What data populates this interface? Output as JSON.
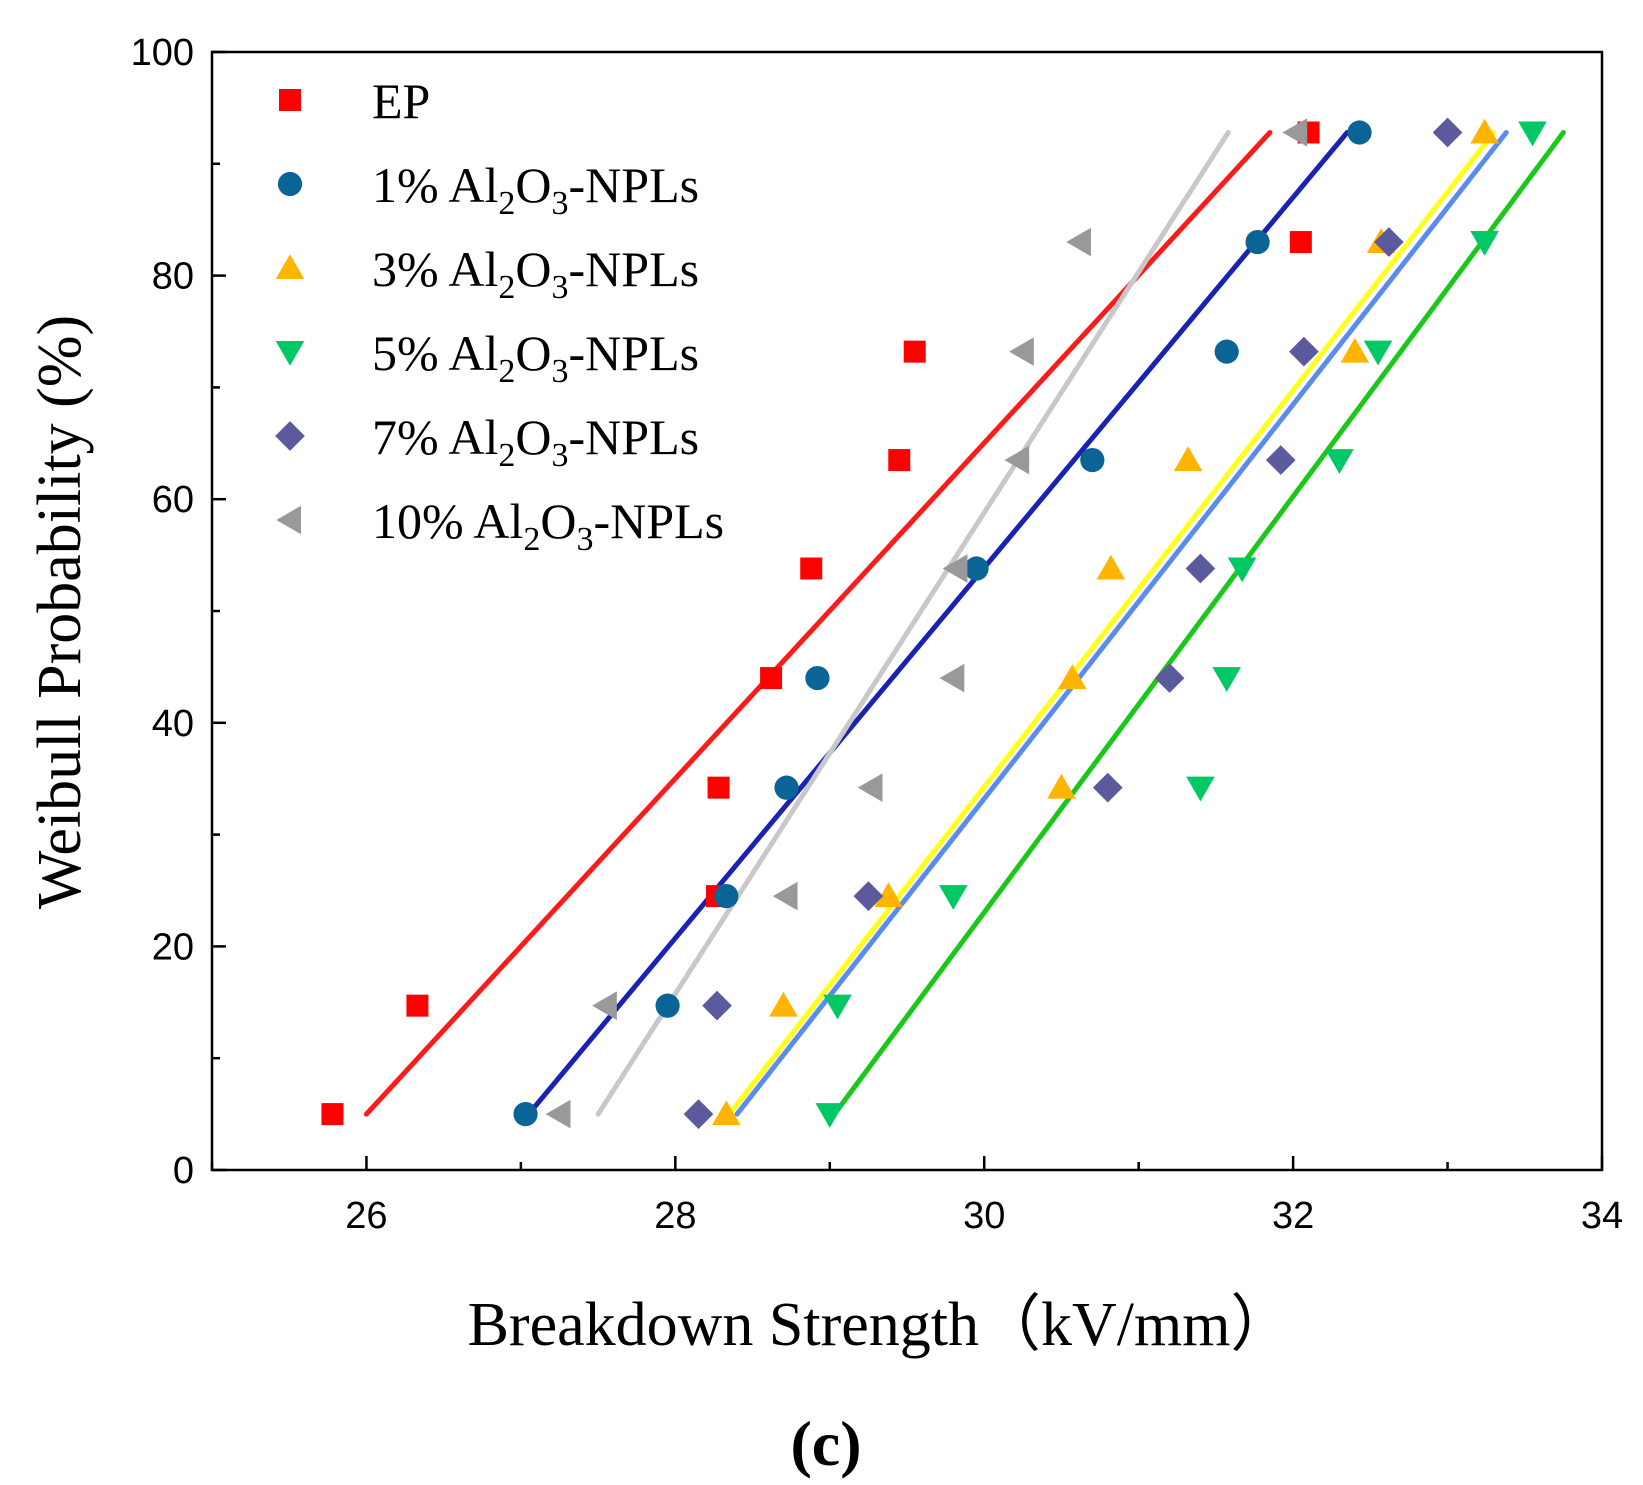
{
  "chart_data": {
    "type": "scatter",
    "title": "",
    "xlabel": "Breakdown Strength（kV/mm）",
    "ylabel": "Weibull Probability (%)",
    "xlim": [
      25,
      34
    ],
    "ylim": [
      0,
      100
    ],
    "xticks": [
      26,
      28,
      30,
      32,
      34
    ],
    "yticks": [
      0,
      20,
      40,
      60,
      80,
      100
    ],
    "xtick_labels": [
      "26",
      "28",
      "30",
      "32",
      "34"
    ],
    "ytick_labels": [
      "0",
      "20",
      "40",
      "60",
      "80",
      "100"
    ],
    "caption": "(c)",
    "legend_position": "top-left",
    "series": [
      {
        "name": "EP",
        "prefix": "EP",
        "suffix": "",
        "marker": "square",
        "color": "#ff0000",
        "line_color": "#ff1a1a",
        "x": [
          25.78,
          26.33,
          28.27,
          28.28,
          28.62,
          28.88,
          29.45,
          29.55,
          32.05,
          32.1
        ],
        "y": [
          5,
          14.7,
          24.5,
          34.2,
          44,
          53.8,
          63.5,
          73.2,
          83,
          92.8
        ],
        "fit": [
          [
            26.0,
            5
          ],
          [
            31.85,
            92.8
          ]
        ]
      },
      {
        "name": "1% Al2O3-NPLs",
        "prefix": "1% Al",
        "suffix": "-NPLs",
        "marker": "circle",
        "color": "#0a6496",
        "line_color": "#1a22b4",
        "x": [
          27.03,
          27.95,
          28.33,
          28.72,
          28.92,
          29.95,
          30.7,
          31.57,
          31.77,
          32.43
        ],
        "y": [
          5,
          14.7,
          24.5,
          34.2,
          44,
          53.8,
          63.5,
          73.2,
          83,
          92.8
        ],
        "fit": [
          [
            27.05,
            5
          ],
          [
            32.35,
            92.8
          ]
        ]
      },
      {
        "name": "3% Al2O3-NPLs",
        "prefix": "3% Al",
        "suffix": "-NPLs",
        "marker": "triangle-up",
        "color": "#ffb400",
        "line_color": "#ffff1a",
        "x": [
          28.33,
          28.7,
          29.38,
          30.5,
          30.57,
          30.82,
          31.32,
          32.4,
          32.57,
          33.24
        ],
        "y": [
          5,
          14.7,
          24.5,
          34.2,
          44,
          53.8,
          63.5,
          73.2,
          83,
          92.8
        ],
        "fit": [
          [
            28.35,
            5
          ],
          [
            33.3,
            92.8
          ]
        ]
      },
      {
        "name": "5% Al2O3-NPLs",
        "prefix": "5% Al",
        "suffix": "-NPLs",
        "marker": "triangle-down",
        "color": "#00c864",
        "line_color": "#1ac81a",
        "x": [
          29.0,
          29.05,
          29.8,
          31.4,
          31.57,
          31.67,
          32.3,
          32.55,
          33.24,
          33.55
        ],
        "y": [
          5,
          14.7,
          24.5,
          34.2,
          44,
          53.8,
          63.5,
          73.2,
          83,
          92.8
        ],
        "fit": [
          [
            29.03,
            5
          ],
          [
            33.75,
            92.8
          ]
        ]
      },
      {
        "name": "7% Al2O3-NPLs",
        "prefix": "7% Al",
        "suffix": "-NPLs",
        "marker": "diamond",
        "color": "#5a5a9c",
        "line_color": "#5a8cf0",
        "x": [
          28.15,
          28.27,
          29.25,
          30.8,
          31.2,
          31.4,
          31.92,
          32.07,
          32.62,
          33.0
        ],
        "y": [
          5,
          14.7,
          24.5,
          34.2,
          44,
          53.8,
          63.5,
          73.2,
          83,
          92.8
        ],
        "fit": [
          [
            28.4,
            5
          ],
          [
            33.38,
            92.8
          ]
        ]
      },
      {
        "name": "10% Al2O3-NPLs",
        "prefix": "10% Al",
        "suffix": "-NPLs",
        "marker": "triangle-left",
        "color": "#999999",
        "line_color": "#c8c8c8",
        "x": [
          27.25,
          27.55,
          28.72,
          29.27,
          29.8,
          29.82,
          30.22,
          30.25,
          30.62,
          32.02
        ],
        "y": [
          5,
          14.7,
          24.5,
          34.2,
          44,
          53.8,
          63.5,
          73.2,
          83,
          92.8
        ],
        "fit": [
          [
            27.5,
            5
          ],
          [
            31.58,
            92.8
          ]
        ]
      }
    ]
  }
}
